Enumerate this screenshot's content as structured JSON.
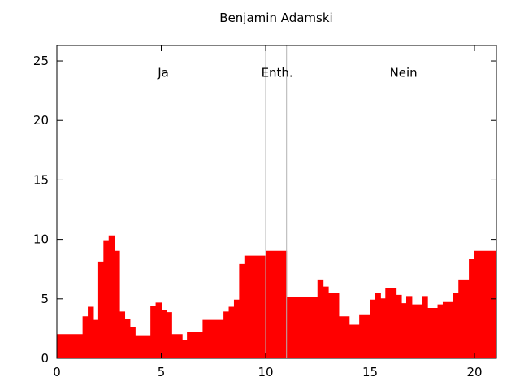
{
  "window": {
    "title": "Benjamin Adamski"
  },
  "colors": {
    "area": "#ff0000",
    "axis": "#000000",
    "divider": "#b3b3b3",
    "background": "#ffffff",
    "text": "#000000"
  },
  "chart_data": {
    "type": "area",
    "style": "step-histogram-filled",
    "title": "Benjamin Adamski",
    "xlabel": "",
    "ylabel": "",
    "xlim": [
      0,
      21.05
    ],
    "ylim": [
      0,
      26.3
    ],
    "xticks": [
      0,
      5,
      10,
      15,
      20
    ],
    "yticks": [
      0,
      5,
      10,
      15,
      20,
      25
    ],
    "grid": false,
    "legend": "none",
    "dividers_x": [
      10,
      11
    ],
    "annotations": [
      {
        "label": "Ja",
        "x": 5.1,
        "y": 24.0
      },
      {
        "label": "Enth.",
        "x": 10.55,
        "y": 24.0
      },
      {
        "label": "Nein",
        "x": 16.6,
        "y": 24.0
      }
    ],
    "series": [
      {
        "name": "votes",
        "x_end": 21.05,
        "step_points": [
          [
            0.0,
            2.0
          ],
          [
            1.25,
            3.5
          ],
          [
            1.5,
            4.3
          ],
          [
            1.75,
            3.2
          ],
          [
            2.0,
            8.1
          ],
          [
            2.25,
            9.9
          ],
          [
            2.5,
            10.3
          ],
          [
            2.75,
            9.0
          ],
          [
            3.0,
            3.9
          ],
          [
            3.25,
            3.3
          ],
          [
            3.5,
            2.6
          ],
          [
            3.75,
            1.9
          ],
          [
            4.5,
            4.4
          ],
          [
            4.75,
            4.65
          ],
          [
            5.0,
            4.0
          ],
          [
            5.25,
            3.85
          ],
          [
            5.5,
            2.0
          ],
          [
            6.0,
            1.5
          ],
          [
            6.25,
            2.2
          ],
          [
            7.0,
            3.2
          ],
          [
            8.0,
            3.9
          ],
          [
            8.25,
            4.3
          ],
          [
            8.5,
            4.9
          ],
          [
            8.75,
            7.9
          ],
          [
            9.0,
            8.6
          ],
          [
            10.0,
            9.0
          ],
          [
            11.0,
            5.1
          ],
          [
            12.5,
            6.6
          ],
          [
            12.75,
            6.0
          ],
          [
            13.0,
            5.5
          ],
          [
            13.5,
            3.5
          ],
          [
            14.0,
            2.8
          ],
          [
            14.5,
            3.6
          ],
          [
            15.0,
            4.9
          ],
          [
            15.25,
            5.5
          ],
          [
            15.5,
            5.0
          ],
          [
            15.75,
            5.9
          ],
          [
            16.25,
            5.3
          ],
          [
            16.5,
            4.6
          ],
          [
            16.75,
            5.2
          ],
          [
            17.0,
            4.5
          ],
          [
            17.5,
            5.2
          ],
          [
            17.75,
            4.2
          ],
          [
            18.25,
            4.5
          ],
          [
            18.5,
            4.7
          ],
          [
            19.0,
            5.5
          ],
          [
            19.25,
            6.6
          ],
          [
            19.75,
            8.3
          ],
          [
            20.0,
            9.0
          ]
        ]
      }
    ]
  }
}
